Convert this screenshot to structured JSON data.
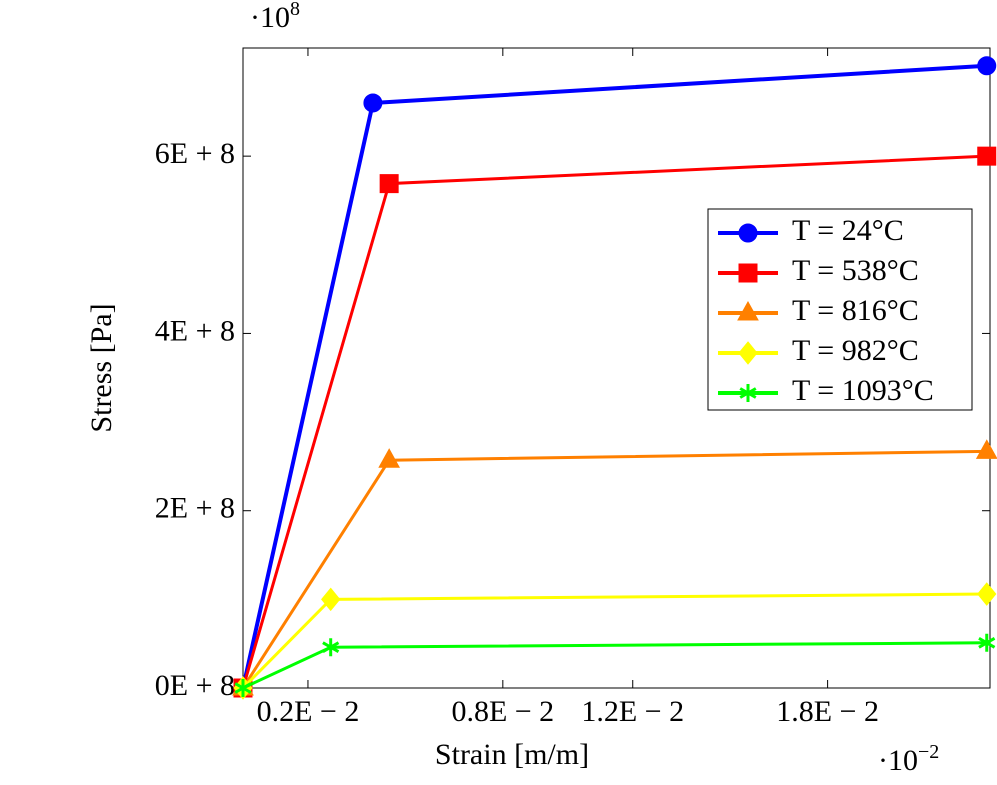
{
  "chart_data": {
    "type": "line",
    "x_label": "Strain [m/m]",
    "y_label": "Stress [Pa]",
    "x_multiplier": {
      "base": "·10",
      "exponent": "−2"
    },
    "y_multiplier": {
      "base": "·10",
      "exponent": "8"
    },
    "xlim": [
      0,
      0.023
    ],
    "ylim": [
      0,
      722000000
    ],
    "xticks": [
      {
        "value": 0.002,
        "label": "0.2E − 2"
      },
      {
        "value": 0.008,
        "label": "0.8E − 2"
      },
      {
        "value": 0.012,
        "label": "1.2E − 2"
      },
      {
        "value": 0.018,
        "label": "1.8E − 2"
      }
    ],
    "yticks": [
      {
        "value": 0,
        "label": "0E + 8"
      },
      {
        "value": 200000000,
        "label": "2E + 8"
      },
      {
        "value": 400000000,
        "label": "4E + 8"
      },
      {
        "value": 600000000,
        "label": "6E + 8"
      }
    ],
    "legend_position": "upper right",
    "series": [
      {
        "name": "T = 24°C",
        "color": "#0000ff",
        "marker": "circle",
        "x": [
          0,
          0.004,
          0.0229
        ],
        "values": [
          0,
          660000000,
          702000000
        ]
      },
      {
        "name": "T = 538°C",
        "color": "#ff0000",
        "marker": "square",
        "x": [
          0,
          0.0045,
          0.0229
        ],
        "values": [
          0,
          569000000,
          600000000
        ]
      },
      {
        "name": "T = 816°C",
        "color": "#ff8000",
        "marker": "triangle",
        "x": [
          0,
          0.0045,
          0.0229
        ],
        "values": [
          0,
          257000000,
          267000000
        ]
      },
      {
        "name": "T = 982°C",
        "color": "#ffff00",
        "marker": "diamond",
        "x": [
          0,
          0.0027,
          0.0229
        ],
        "values": [
          0,
          100000000,
          106000000
        ]
      },
      {
        "name": "T = 1093°C",
        "color": "#00ff00",
        "marker": "star",
        "x": [
          0,
          0.0027,
          0.0229
        ],
        "values": [
          0,
          46000000,
          51000000
        ]
      }
    ]
  }
}
